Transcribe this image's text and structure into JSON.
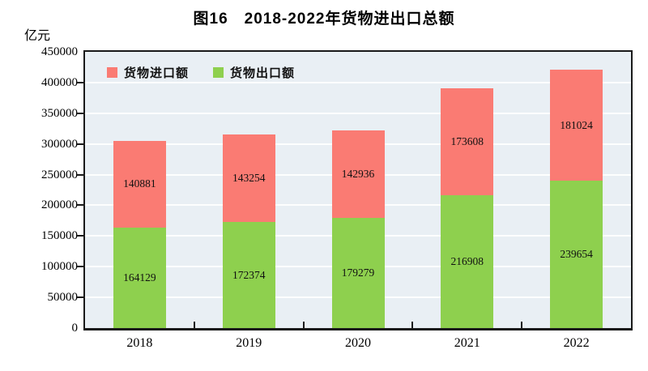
{
  "title": "图16　2018-2022年货物进出口总额",
  "unit_label": "亿元",
  "colors": {
    "import": "#FA7B73",
    "export": "#8ED04E",
    "plot_bg": "#E9EFF4",
    "gridline": "#FFFFFF",
    "axis": "#1A1A1A",
    "text": "#000000"
  },
  "legend": [
    {
      "label": "货物进口额",
      "series": "import",
      "color": "#FA7B73"
    },
    {
      "label": "货物出口额",
      "series": "export",
      "color": "#8ED04E"
    }
  ],
  "chart_data": {
    "type": "bar",
    "stacked": true,
    "title": "图16　2018-2022年货物进出口总额",
    "ylabel": "亿元",
    "categories": [
      "2018",
      "2019",
      "2020",
      "2021",
      "2022"
    ],
    "series": [
      {
        "name": "货物出口额",
        "role": "export",
        "color": "#8ED04E",
        "values": [
          164129,
          172374,
          179279,
          216908,
          239654
        ]
      },
      {
        "name": "货物进口额",
        "role": "import",
        "color": "#FA7B73",
        "values": [
          140881,
          143254,
          142936,
          173608,
          181024
        ]
      }
    ],
    "ylim": [
      0,
      450000
    ],
    "ytick_step": 50000,
    "yticks": [
      0,
      50000,
      100000,
      150000,
      200000,
      250000,
      300000,
      350000,
      400000,
      450000
    ],
    "grid": true,
    "legend_position": "top-left-inside"
  }
}
